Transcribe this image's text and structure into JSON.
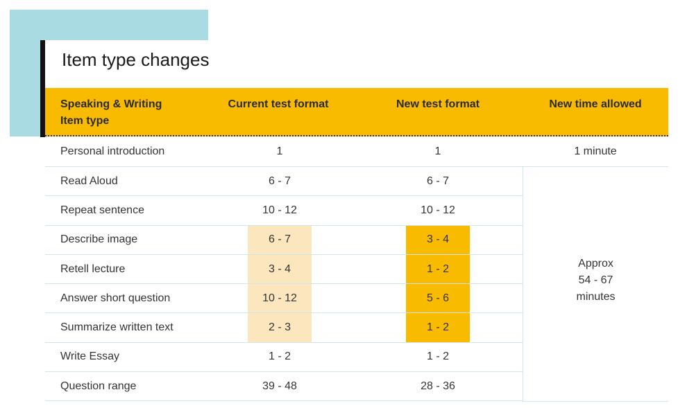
{
  "title": "Item type changes",
  "headers": {
    "item_type_line1": "Speaking & Writing",
    "item_type_line2": "Item type",
    "current": "Current test format",
    "new": "New test format",
    "time": "New time allowed"
  },
  "rows": [
    {
      "item": "Personal introduction",
      "current": "1",
      "new": "1",
      "time": "1 minute"
    },
    {
      "item": "Read Aloud",
      "current": "6 - 7",
      "new": "6 - 7"
    },
    {
      "item": "Repeat sentence",
      "current": "10 - 12",
      "new": "10 - 12"
    },
    {
      "item": "Describe image",
      "current": "6 - 7",
      "new": "3 - 4"
    },
    {
      "item": "Retell lecture",
      "current": "3 - 4",
      "new": "1 - 2"
    },
    {
      "item": "Answer short question",
      "current": "10 - 12",
      "new": "5 - 6"
    },
    {
      "item": "Summarize written text",
      "current": "2 - 3",
      "new": "1 - 2"
    },
    {
      "item": "Write Essay",
      "current": "1 - 2",
      "new": "1 - 2"
    },
    {
      "item": "Question range",
      "current": "39 - 48",
      "new": "28 - 36"
    }
  ],
  "approx_time": {
    "line1": "Approx",
    "line2": "54 - 67",
    "line3": "minutes"
  },
  "colors": {
    "accent_blue": "#a9dbe2",
    "header_yellow": "#f9bb00",
    "highlight_light": "#fbe6bd"
  }
}
